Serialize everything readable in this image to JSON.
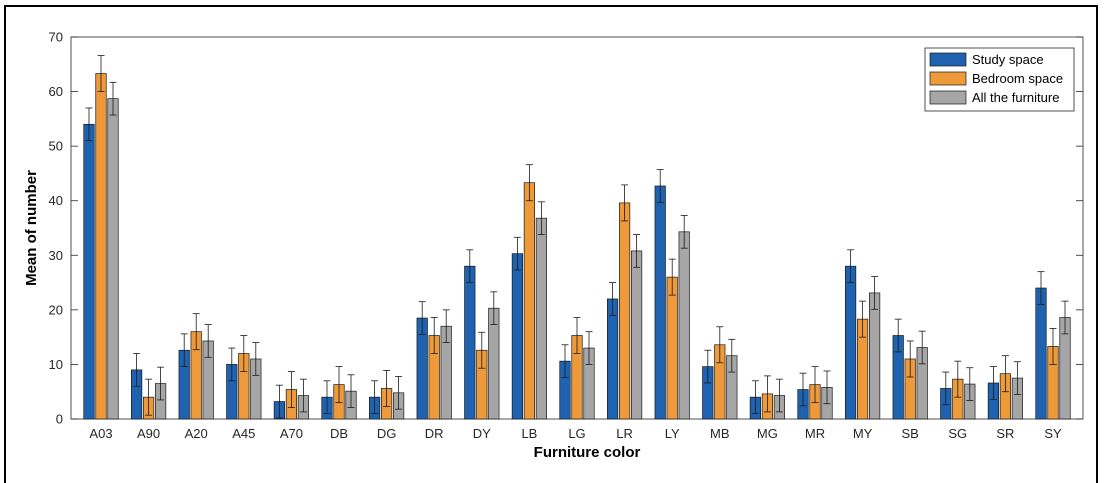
{
  "chart_data": {
    "type": "bar",
    "xlabel": "Furniture color",
    "ylabel": "Mean of number",
    "ylim": [
      0,
      70
    ],
    "yticks": [
      0,
      10,
      20,
      30,
      40,
      50,
      60,
      70
    ],
    "legend_position": "top-right",
    "error_bars": true,
    "categories": [
      "A03",
      "A90",
      "A20",
      "A45",
      "A70",
      "DB",
      "DG",
      "DR",
      "DY",
      "LB",
      "LG",
      "LR",
      "LY",
      "MB",
      "MG",
      "MR",
      "MY",
      "SB",
      "SG",
      "SR",
      "SY"
    ],
    "series": [
      {
        "name": "Study space",
        "color": "#1f63b0",
        "values": [
          54,
          9,
          12.6,
          10,
          3.2,
          4,
          4,
          18.5,
          28,
          30.3,
          10.6,
          22,
          42.7,
          9.6,
          4,
          5.4,
          28,
          15.3,
          5.6,
          6.6,
          24
        ],
        "errors": [
          3,
          3,
          3,
          3,
          3,
          3,
          3,
          3,
          3,
          3,
          3,
          3,
          3,
          3,
          3,
          3,
          3,
          3,
          3,
          3,
          3
        ]
      },
      {
        "name": "Bedroom space",
        "color": "#ef9a3a",
        "values": [
          63.3,
          4,
          16,
          12,
          5.4,
          6.3,
          5.6,
          15.3,
          12.6,
          43.3,
          15.3,
          39.6,
          26,
          13.6,
          4.6,
          6.3,
          18.3,
          11,
          7.3,
          8.3,
          13.3
        ],
        "errors": [
          3.3,
          3.3,
          3.3,
          3.3,
          3.3,
          3.3,
          3.3,
          3.3,
          3.3,
          3.3,
          3.3,
          3.3,
          3.3,
          3.3,
          3.3,
          3.3,
          3.3,
          3.3,
          3.3,
          3.3,
          3.3
        ]
      },
      {
        "name": "All the furniture",
        "color": "#a6a6a6",
        "values": [
          58.7,
          6.5,
          14.3,
          11,
          4.3,
          5.1,
          4.8,
          17,
          20.3,
          36.8,
          13,
          30.8,
          34.3,
          11.6,
          4.3,
          5.8,
          23.1,
          13.1,
          6.4,
          7.5,
          18.6
        ],
        "errors": [
          3,
          3,
          3,
          3,
          3,
          3,
          3,
          3,
          3,
          3,
          3,
          3,
          3,
          3,
          3,
          3,
          3,
          3,
          3,
          3,
          3
        ]
      }
    ]
  }
}
